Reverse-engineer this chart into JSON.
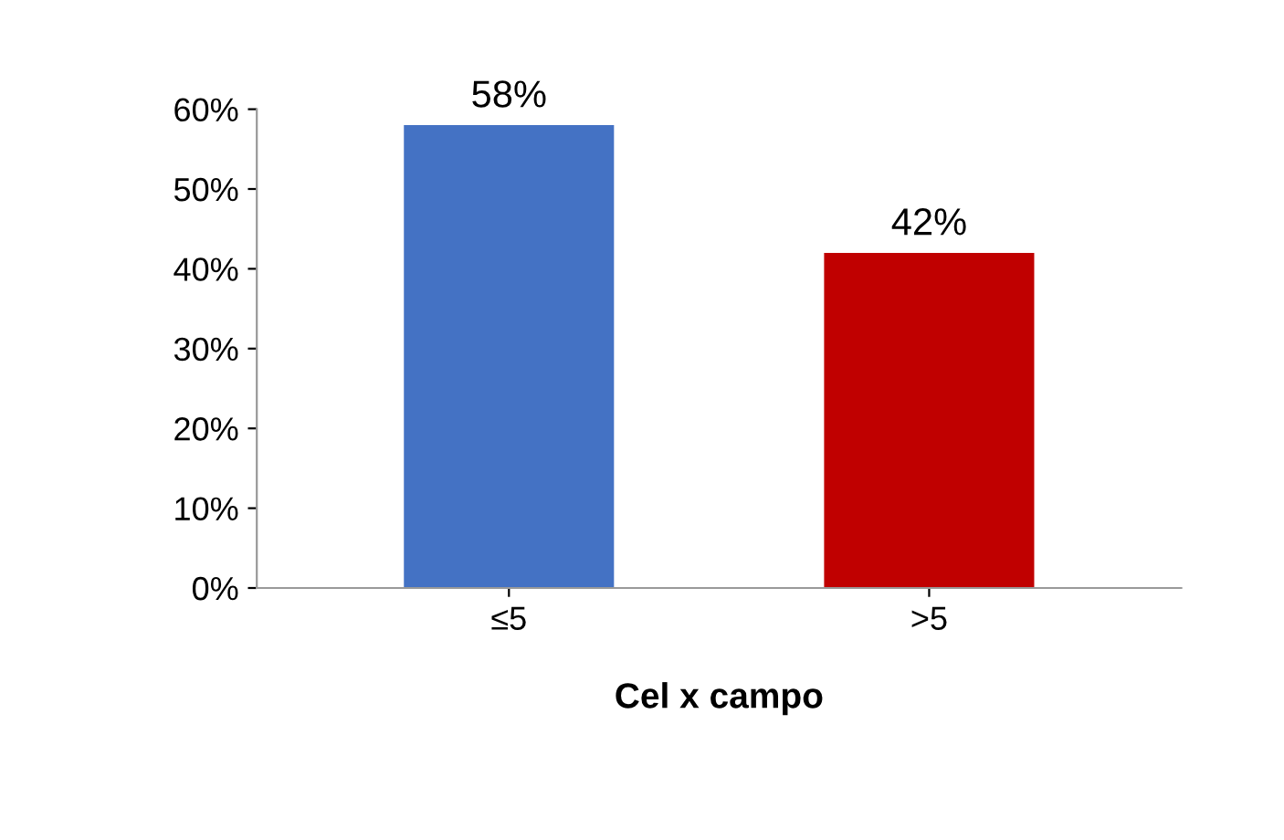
{
  "chart_data": {
    "type": "bar",
    "xlabel": "Cel x campo",
    "categories": [
      "≤5",
      ">5"
    ],
    "values": [
      58,
      42
    ],
    "colors": [
      "#4472c4",
      "#c00000"
    ],
    "value_labels": [
      "58%",
      "42%"
    ],
    "ylim": [
      0,
      60
    ],
    "yticks": [
      {
        "value": 0,
        "label": "0%"
      },
      {
        "value": 10,
        "label": "10%"
      },
      {
        "value": 20,
        "label": "20%"
      },
      {
        "value": 30,
        "label": "30%"
      },
      {
        "value": 40,
        "label": "40%"
      },
      {
        "value": 50,
        "label": "50%"
      },
      {
        "value": 60,
        "label": "60%"
      }
    ],
    "grid": false
  }
}
